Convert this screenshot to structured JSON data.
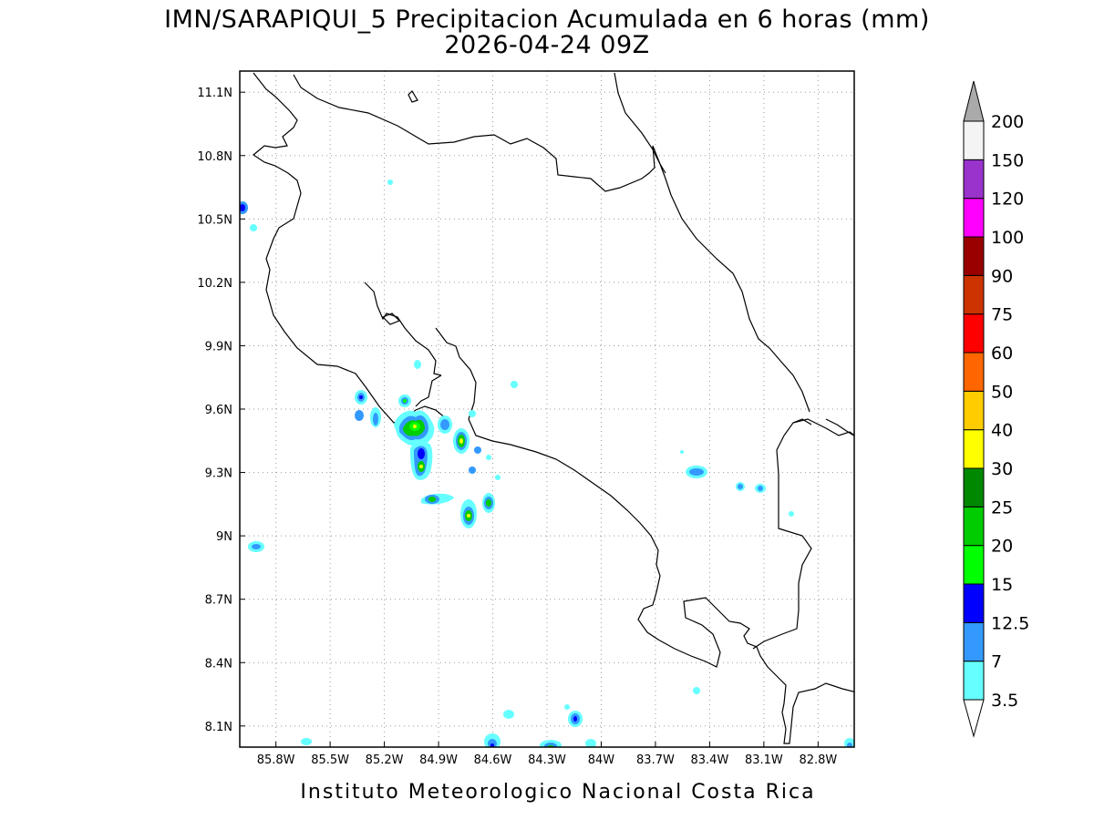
{
  "title_line1": "IMN/SARAPIQUI_5 Precipitacion Acumulada en 6 horas (mm)",
  "title_line2": "2026-04-24 09Z",
  "credit": "Instituto Meteorologico Nacional Costa Rica",
  "map": {
    "lon_range": [
      -86.0,
      -82.6
    ],
    "lat_range": [
      8.0,
      11.2
    ],
    "lon_ticks": [
      "85.8W",
      "85.5W",
      "85.2W",
      "84.9W",
      "84.6W",
      "84.3W",
      "84W",
      "83.7W",
      "83.4W",
      "83.1W",
      "82.8W"
    ],
    "lat_ticks": [
      "11.1N",
      "10.8N",
      "10.5N",
      "10.2N",
      "9.9N",
      "9.6N",
      "9.3N",
      "9N",
      "8.7N",
      "8.4N",
      "8.1N"
    ],
    "grid": "dotted"
  },
  "colorbar": {
    "labels": [
      "3.5",
      "7",
      "12.5",
      "15",
      "20",
      "25",
      "30",
      "40",
      "50",
      "60",
      "75",
      "90",
      "100",
      "120",
      "150",
      "200"
    ],
    "colors": [
      "#66ffff",
      "#3399ff",
      "#0000ff",
      "#00ff00",
      "#00cc00",
      "#008800",
      "#ffff00",
      "#ffcc00",
      "#ff6600",
      "#ff0000",
      "#cc3300",
      "#990000",
      "#ff00ff",
      "#9933cc",
      "#f4f4f4",
      "#aaaaaa"
    ]
  }
}
